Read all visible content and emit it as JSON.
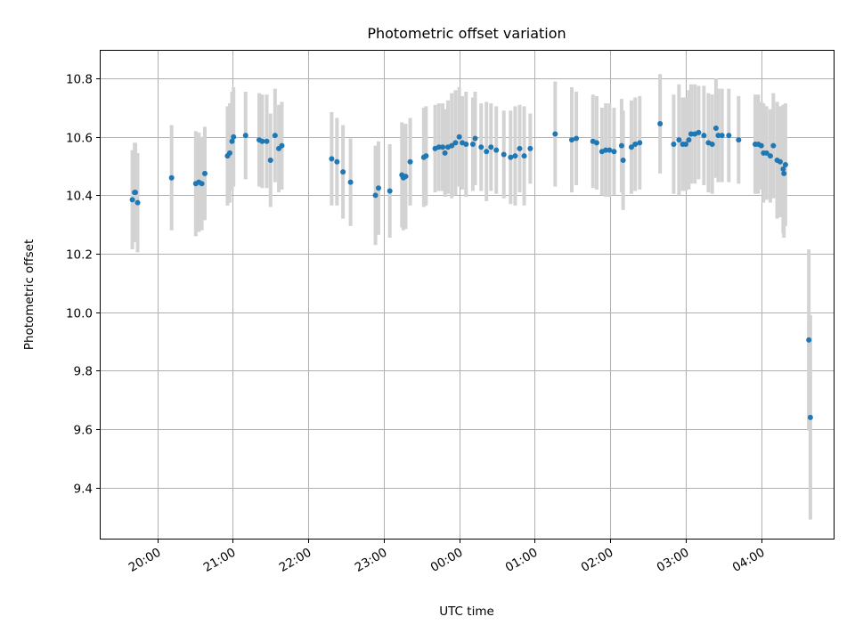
{
  "chart_data": {
    "type": "scatter",
    "title": "Photometric offset variation",
    "xlabel": "UTC time",
    "ylabel": "Photometric offset",
    "grid": true,
    "x_unit": "hours since 00:00 UTC",
    "xlim": [
      -4.75,
      4.97
    ],
    "ylim": [
      9.225,
      10.895
    ],
    "x_ticks": [
      {
        "value": -4,
        "label": "20:00"
      },
      {
        "value": -3,
        "label": "21:00"
      },
      {
        "value": -2,
        "label": "22:00"
      },
      {
        "value": -1,
        "label": "23:00"
      },
      {
        "value": 0,
        "label": "00:00"
      },
      {
        "value": 1,
        "label": "01:00"
      },
      {
        "value": 2,
        "label": "02:00"
      },
      {
        "value": 3,
        "label": "03:00"
      },
      {
        "value": 4,
        "label": "04:00"
      }
    ],
    "y_ticks": [
      {
        "value": 9.4,
        "label": "9.4"
      },
      {
        "value": 9.6,
        "label": "9.6"
      },
      {
        "value": 9.8,
        "label": "9.8"
      },
      {
        "value": 10.0,
        "label": "10.0"
      },
      {
        "value": 10.2,
        "label": "10.2"
      },
      {
        "value": 10.4,
        "label": "10.4"
      },
      {
        "value": 10.6,
        "label": "10.6"
      },
      {
        "value": 10.8,
        "label": "10.8"
      }
    ],
    "marker_color": "#1f77b4",
    "errorbar_color": "#d3d3d3",
    "series": [
      {
        "name": "Photometric offset",
        "points": [
          [
            -4.33,
            10.385,
            0.17
          ],
          [
            -4.3,
            10.41,
            0.17
          ],
          [
            -4.29,
            10.41,
            0.17
          ],
          [
            -4.26,
            10.375,
            0.17
          ],
          [
            -3.81,
            10.46,
            0.18
          ],
          [
            -3.49,
            10.44,
            0.18
          ],
          [
            -3.45,
            10.445,
            0.17
          ],
          [
            -3.41,
            10.44,
            0.16
          ],
          [
            -3.37,
            10.475,
            0.16
          ],
          [
            -3.07,
            10.535,
            0.17
          ],
          [
            -3.04,
            10.545,
            0.17
          ],
          [
            -3.01,
            10.585,
            0.17
          ],
          [
            -2.99,
            10.6,
            0.17
          ],
          [
            -2.83,
            10.605,
            0.15
          ],
          [
            -2.65,
            10.59,
            0.16
          ],
          [
            -2.61,
            10.585,
            0.16
          ],
          [
            -2.55,
            10.585,
            0.16
          ],
          [
            -2.5,
            10.52,
            0.16
          ],
          [
            -2.44,
            10.605,
            0.16
          ],
          [
            -2.39,
            10.56,
            0.15
          ],
          [
            -2.35,
            10.57,
            0.15
          ],
          [
            -1.69,
            10.525,
            0.16
          ],
          [
            -1.62,
            10.515,
            0.15
          ],
          [
            -1.54,
            10.48,
            0.16
          ],
          [
            -1.44,
            10.445,
            0.15
          ],
          [
            -1.11,
            10.4,
            0.17
          ],
          [
            -1.07,
            10.425,
            0.16
          ],
          [
            -0.92,
            10.415,
            0.16
          ],
          [
            -0.76,
            10.47,
            0.18
          ],
          [
            -0.74,
            10.46,
            0.18
          ],
          [
            -0.71,
            10.465,
            0.18
          ],
          [
            -0.65,
            10.515,
            0.15
          ],
          [
            -0.47,
            10.53,
            0.17
          ],
          [
            -0.44,
            10.535,
            0.17
          ],
          [
            -0.32,
            10.56,
            0.15
          ],
          [
            -0.27,
            10.565,
            0.15
          ],
          [
            -0.22,
            10.565,
            0.15
          ],
          [
            -0.19,
            10.545,
            0.15
          ],
          [
            -0.15,
            10.565,
            0.16
          ],
          [
            -0.1,
            10.57,
            0.18
          ],
          [
            -0.05,
            10.58,
            0.18
          ],
          [
            0.0,
            10.6,
            0.17
          ],
          [
            0.04,
            10.58,
            0.16
          ],
          [
            0.09,
            10.575,
            0.18
          ],
          [
            0.18,
            10.575,
            0.16
          ],
          [
            0.21,
            10.595,
            0.16
          ],
          [
            0.29,
            10.565,
            0.15
          ],
          [
            0.36,
            10.55,
            0.17
          ],
          [
            0.42,
            10.565,
            0.15
          ],
          [
            0.49,
            10.555,
            0.15
          ],
          [
            0.59,
            10.54,
            0.15
          ],
          [
            0.68,
            10.53,
            0.16
          ],
          [
            0.74,
            10.535,
            0.17
          ],
          [
            0.8,
            10.56,
            0.15
          ],
          [
            0.86,
            10.535,
            0.17
          ],
          [
            0.94,
            10.56,
            0.12
          ],
          [
            1.27,
            10.61,
            0.18
          ],
          [
            1.49,
            10.59,
            0.18
          ],
          [
            1.55,
            10.595,
            0.16
          ],
          [
            1.77,
            10.585,
            0.16
          ],
          [
            1.82,
            10.58,
            0.16
          ],
          [
            1.89,
            10.55,
            0.15
          ],
          [
            1.94,
            10.555,
            0.16
          ],
          [
            1.99,
            10.555,
            0.16
          ],
          [
            2.05,
            10.55,
            0.15
          ],
          [
            2.17,
            10.52,
            0.17
          ],
          [
            2.15,
            10.57,
            0.16
          ],
          [
            2.28,
            10.565,
            0.16
          ],
          [
            2.33,
            10.575,
            0.16
          ],
          [
            2.39,
            10.58,
            0.16
          ],
          [
            2.66,
            10.645,
            0.17
          ],
          [
            2.84,
            10.575,
            0.17
          ],
          [
            2.91,
            10.59,
            0.19
          ],
          [
            2.96,
            10.575,
            0.16
          ],
          [
            3.0,
            10.575,
            0.16
          ],
          [
            3.04,
            10.59,
            0.17
          ],
          [
            3.07,
            10.61,
            0.17
          ],
          [
            3.12,
            10.61,
            0.17
          ],
          [
            3.17,
            10.615,
            0.16
          ],
          [
            3.24,
            10.605,
            0.17
          ],
          [
            3.3,
            10.58,
            0.17
          ],
          [
            3.35,
            10.575,
            0.17
          ],
          [
            3.4,
            10.63,
            0.17
          ],
          [
            3.43,
            10.605,
            0.16
          ],
          [
            3.48,
            10.605,
            0.16
          ],
          [
            3.57,
            10.605,
            0.16
          ],
          [
            3.7,
            10.59,
            0.15
          ],
          [
            3.92,
            10.575,
            0.17
          ],
          [
            3.96,
            10.575,
            0.17
          ],
          [
            4.0,
            10.57,
            0.15
          ],
          [
            4.03,
            10.545,
            0.17
          ],
          [
            4.07,
            10.545,
            0.16
          ],
          [
            4.12,
            10.535,
            0.16
          ],
          [
            4.16,
            10.57,
            0.18
          ],
          [
            4.21,
            10.52,
            0.2
          ],
          [
            4.25,
            10.515,
            0.19
          ],
          [
            4.29,
            10.49,
            0.22
          ],
          [
            4.3,
            10.475,
            0.22
          ],
          [
            4.32,
            10.505,
            0.21
          ],
          [
            4.63,
            9.905,
            0.31
          ],
          [
            4.65,
            9.64,
            0.35
          ]
        ]
      }
    ]
  }
}
